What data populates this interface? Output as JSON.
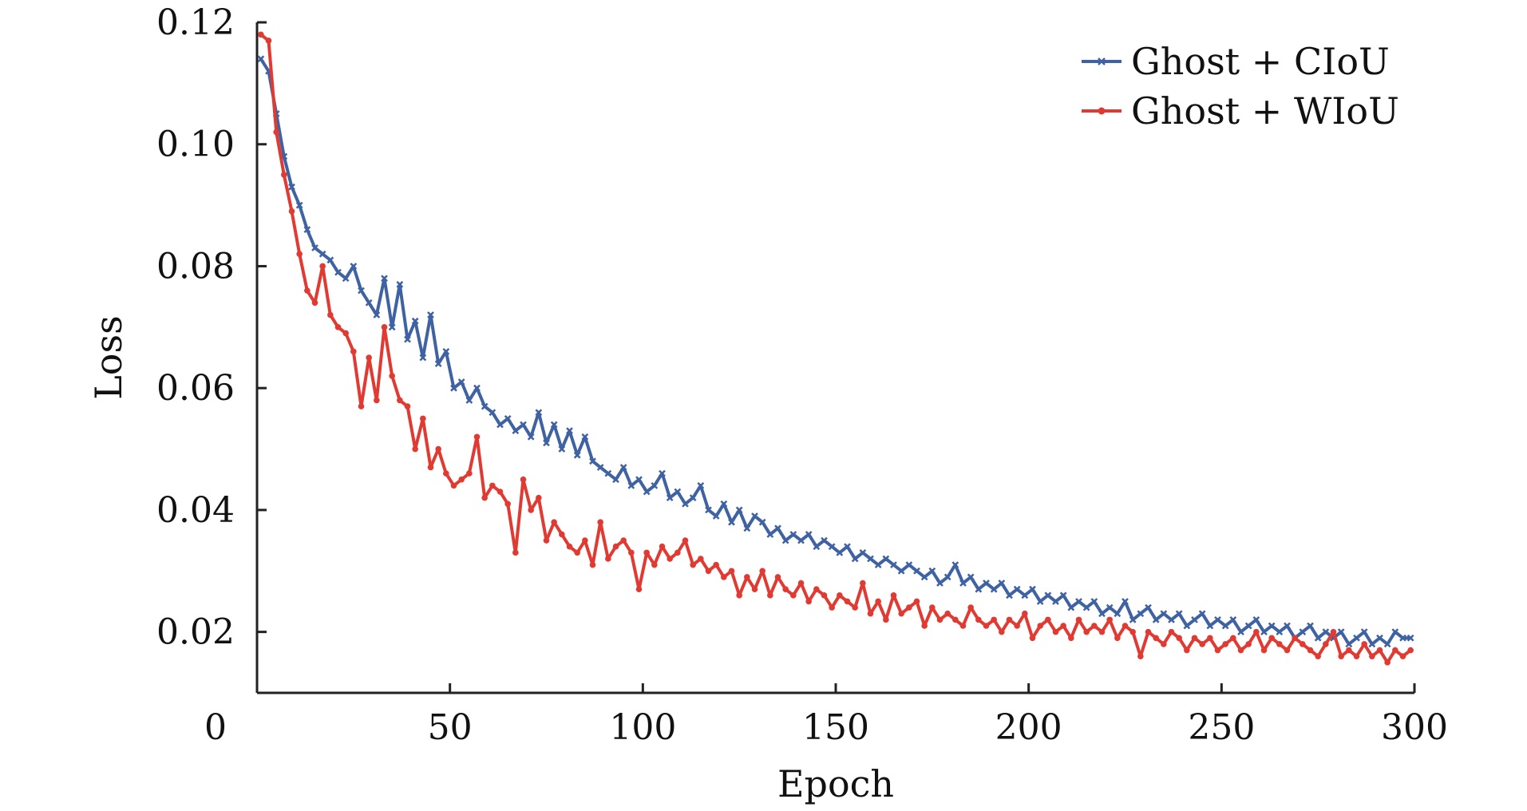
{
  "chart_data": {
    "type": "line",
    "title": "",
    "xlabel": "Epoch",
    "ylabel": "Loss",
    "xlim": [
      0,
      300
    ],
    "ylim": [
      0.01,
      0.12
    ],
    "x_ticks": [
      0,
      50,
      100,
      150,
      200,
      250,
      300
    ],
    "x_tick_labels": [
      "0",
      "50",
      "100",
      "150",
      "200",
      "250",
      "300"
    ],
    "y_ticks": [
      0.02,
      0.04,
      0.06,
      0.08,
      0.1,
      0.12
    ],
    "y_tick_labels": [
      "0.02",
      "0.04",
      "0.06",
      "0.08",
      "0.10",
      "0.12"
    ],
    "grid": false,
    "legend_position": "top-right",
    "series": [
      {
        "name": "Ghost + CIoU",
        "color": "#3f62a3",
        "marker": "x",
        "x": [
          1,
          3,
          5,
          7,
          9,
          11,
          13,
          15,
          17,
          19,
          21,
          23,
          25,
          27,
          29,
          31,
          33,
          35,
          37,
          39,
          41,
          43,
          45,
          47,
          49,
          51,
          53,
          55,
          57,
          59,
          61,
          63,
          65,
          67,
          69,
          71,
          73,
          75,
          77,
          79,
          81,
          83,
          85,
          87,
          89,
          91,
          93,
          95,
          97,
          99,
          101,
          103,
          105,
          107,
          109,
          111,
          113,
          115,
          117,
          119,
          121,
          123,
          125,
          127,
          129,
          131,
          133,
          135,
          137,
          139,
          141,
          143,
          145,
          147,
          149,
          151,
          153,
          155,
          157,
          159,
          161,
          163,
          165,
          167,
          169,
          171,
          173,
          175,
          177,
          179,
          181,
          183,
          185,
          187,
          189,
          191,
          193,
          195,
          197,
          199,
          201,
          203,
          205,
          207,
          209,
          211,
          213,
          215,
          217,
          219,
          221,
          223,
          225,
          227,
          229,
          231,
          233,
          235,
          237,
          239,
          241,
          243,
          245,
          247,
          249,
          251,
          253,
          255,
          257,
          259,
          261,
          263,
          265,
          267,
          269,
          271,
          273,
          275,
          277,
          279,
          281,
          283,
          285,
          287,
          289,
          291,
          293,
          295,
          297,
          299
        ],
        "values": [
          0.114,
          0.112,
          0.105,
          0.098,
          0.093,
          0.09,
          0.086,
          0.083,
          0.082,
          0.081,
          0.079,
          0.078,
          0.08,
          0.076,
          0.074,
          0.072,
          0.078,
          0.07,
          0.077,
          0.068,
          0.071,
          0.065,
          0.072,
          0.064,
          0.066,
          0.06,
          0.061,
          0.058,
          0.06,
          0.057,
          0.056,
          0.054,
          0.055,
          0.053,
          0.054,
          0.052,
          0.056,
          0.051,
          0.054,
          0.05,
          0.053,
          0.049,
          0.052,
          0.048,
          0.047,
          0.046,
          0.045,
          0.047,
          0.044,
          0.045,
          0.043,
          0.044,
          0.046,
          0.042,
          0.043,
          0.041,
          0.042,
          0.044,
          0.04,
          0.039,
          0.041,
          0.038,
          0.04,
          0.037,
          0.039,
          0.038,
          0.036,
          0.037,
          0.035,
          0.036,
          0.035,
          0.036,
          0.034,
          0.035,
          0.034,
          0.033,
          0.034,
          0.032,
          0.033,
          0.032,
          0.031,
          0.032,
          0.031,
          0.03,
          0.031,
          0.03,
          0.029,
          0.03,
          0.028,
          0.029,
          0.031,
          0.028,
          0.029,
          0.027,
          0.028,
          0.027,
          0.028,
          0.026,
          0.027,
          0.026,
          0.027,
          0.025,
          0.026,
          0.025,
          0.026,
          0.024,
          0.025,
          0.024,
          0.025,
          0.023,
          0.024,
          0.023,
          0.025,
          0.022,
          0.023,
          0.024,
          0.022,
          0.023,
          0.022,
          0.023,
          0.021,
          0.022,
          0.023,
          0.021,
          0.022,
          0.021,
          0.022,
          0.02,
          0.021,
          0.022,
          0.02,
          0.021,
          0.02,
          0.021,
          0.019,
          0.02,
          0.021,
          0.019,
          0.02,
          0.019,
          0.02,
          0.018,
          0.019,
          0.02,
          0.018,
          0.019,
          0.018,
          0.02,
          0.019,
          0.019
        ]
      },
      {
        "name": "Ghost + WIoU",
        "color": "#e03a32",
        "marker": "o",
        "x": [
          1,
          3,
          5,
          7,
          9,
          11,
          13,
          15,
          17,
          19,
          21,
          23,
          25,
          27,
          29,
          31,
          33,
          35,
          37,
          39,
          41,
          43,
          45,
          47,
          49,
          51,
          53,
          55,
          57,
          59,
          61,
          63,
          65,
          67,
          69,
          71,
          73,
          75,
          77,
          79,
          81,
          83,
          85,
          87,
          89,
          91,
          93,
          95,
          97,
          99,
          101,
          103,
          105,
          107,
          109,
          111,
          113,
          115,
          117,
          119,
          121,
          123,
          125,
          127,
          129,
          131,
          133,
          135,
          137,
          139,
          141,
          143,
          145,
          147,
          149,
          151,
          153,
          155,
          157,
          159,
          161,
          163,
          165,
          167,
          169,
          171,
          173,
          175,
          177,
          179,
          181,
          183,
          185,
          187,
          189,
          191,
          193,
          195,
          197,
          199,
          201,
          203,
          205,
          207,
          209,
          211,
          213,
          215,
          217,
          219,
          221,
          223,
          225,
          227,
          229,
          231,
          233,
          235,
          237,
          239,
          241,
          243,
          245,
          247,
          249,
          251,
          253,
          255,
          257,
          259,
          261,
          263,
          265,
          267,
          269,
          271,
          273,
          275,
          277,
          279,
          281,
          283,
          285,
          287,
          289,
          291,
          293,
          295,
          297,
          299
        ],
        "values": [
          0.118,
          0.117,
          0.102,
          0.095,
          0.089,
          0.082,
          0.076,
          0.074,
          0.08,
          0.072,
          0.07,
          0.069,
          0.066,
          0.057,
          0.065,
          0.058,
          0.07,
          0.062,
          0.058,
          0.057,
          0.05,
          0.055,
          0.047,
          0.05,
          0.046,
          0.044,
          0.045,
          0.046,
          0.052,
          0.042,
          0.044,
          0.043,
          0.041,
          0.033,
          0.045,
          0.04,
          0.042,
          0.035,
          0.038,
          0.036,
          0.034,
          0.033,
          0.035,
          0.031,
          0.038,
          0.032,
          0.034,
          0.035,
          0.033,
          0.027,
          0.033,
          0.031,
          0.034,
          0.032,
          0.033,
          0.035,
          0.031,
          0.032,
          0.03,
          0.031,
          0.029,
          0.03,
          0.026,
          0.029,
          0.027,
          0.03,
          0.026,
          0.029,
          0.027,
          0.026,
          0.028,
          0.025,
          0.027,
          0.026,
          0.024,
          0.026,
          0.025,
          0.024,
          0.028,
          0.023,
          0.025,
          0.022,
          0.026,
          0.023,
          0.024,
          0.025,
          0.021,
          0.024,
          0.022,
          0.023,
          0.022,
          0.021,
          0.024,
          0.022,
          0.021,
          0.022,
          0.02,
          0.022,
          0.021,
          0.023,
          0.019,
          0.021,
          0.022,
          0.02,
          0.021,
          0.019,
          0.022,
          0.02,
          0.021,
          0.02,
          0.022,
          0.019,
          0.021,
          0.02,
          0.016,
          0.02,
          0.019,
          0.018,
          0.02,
          0.019,
          0.017,
          0.019,
          0.018,
          0.019,
          0.017,
          0.018,
          0.019,
          0.017,
          0.018,
          0.02,
          0.017,
          0.019,
          0.018,
          0.017,
          0.019,
          0.018,
          0.017,
          0.016,
          0.018,
          0.02,
          0.016,
          0.017,
          0.016,
          0.018,
          0.016,
          0.017,
          0.015,
          0.017,
          0.016,
          0.017
        ]
      }
    ]
  }
}
